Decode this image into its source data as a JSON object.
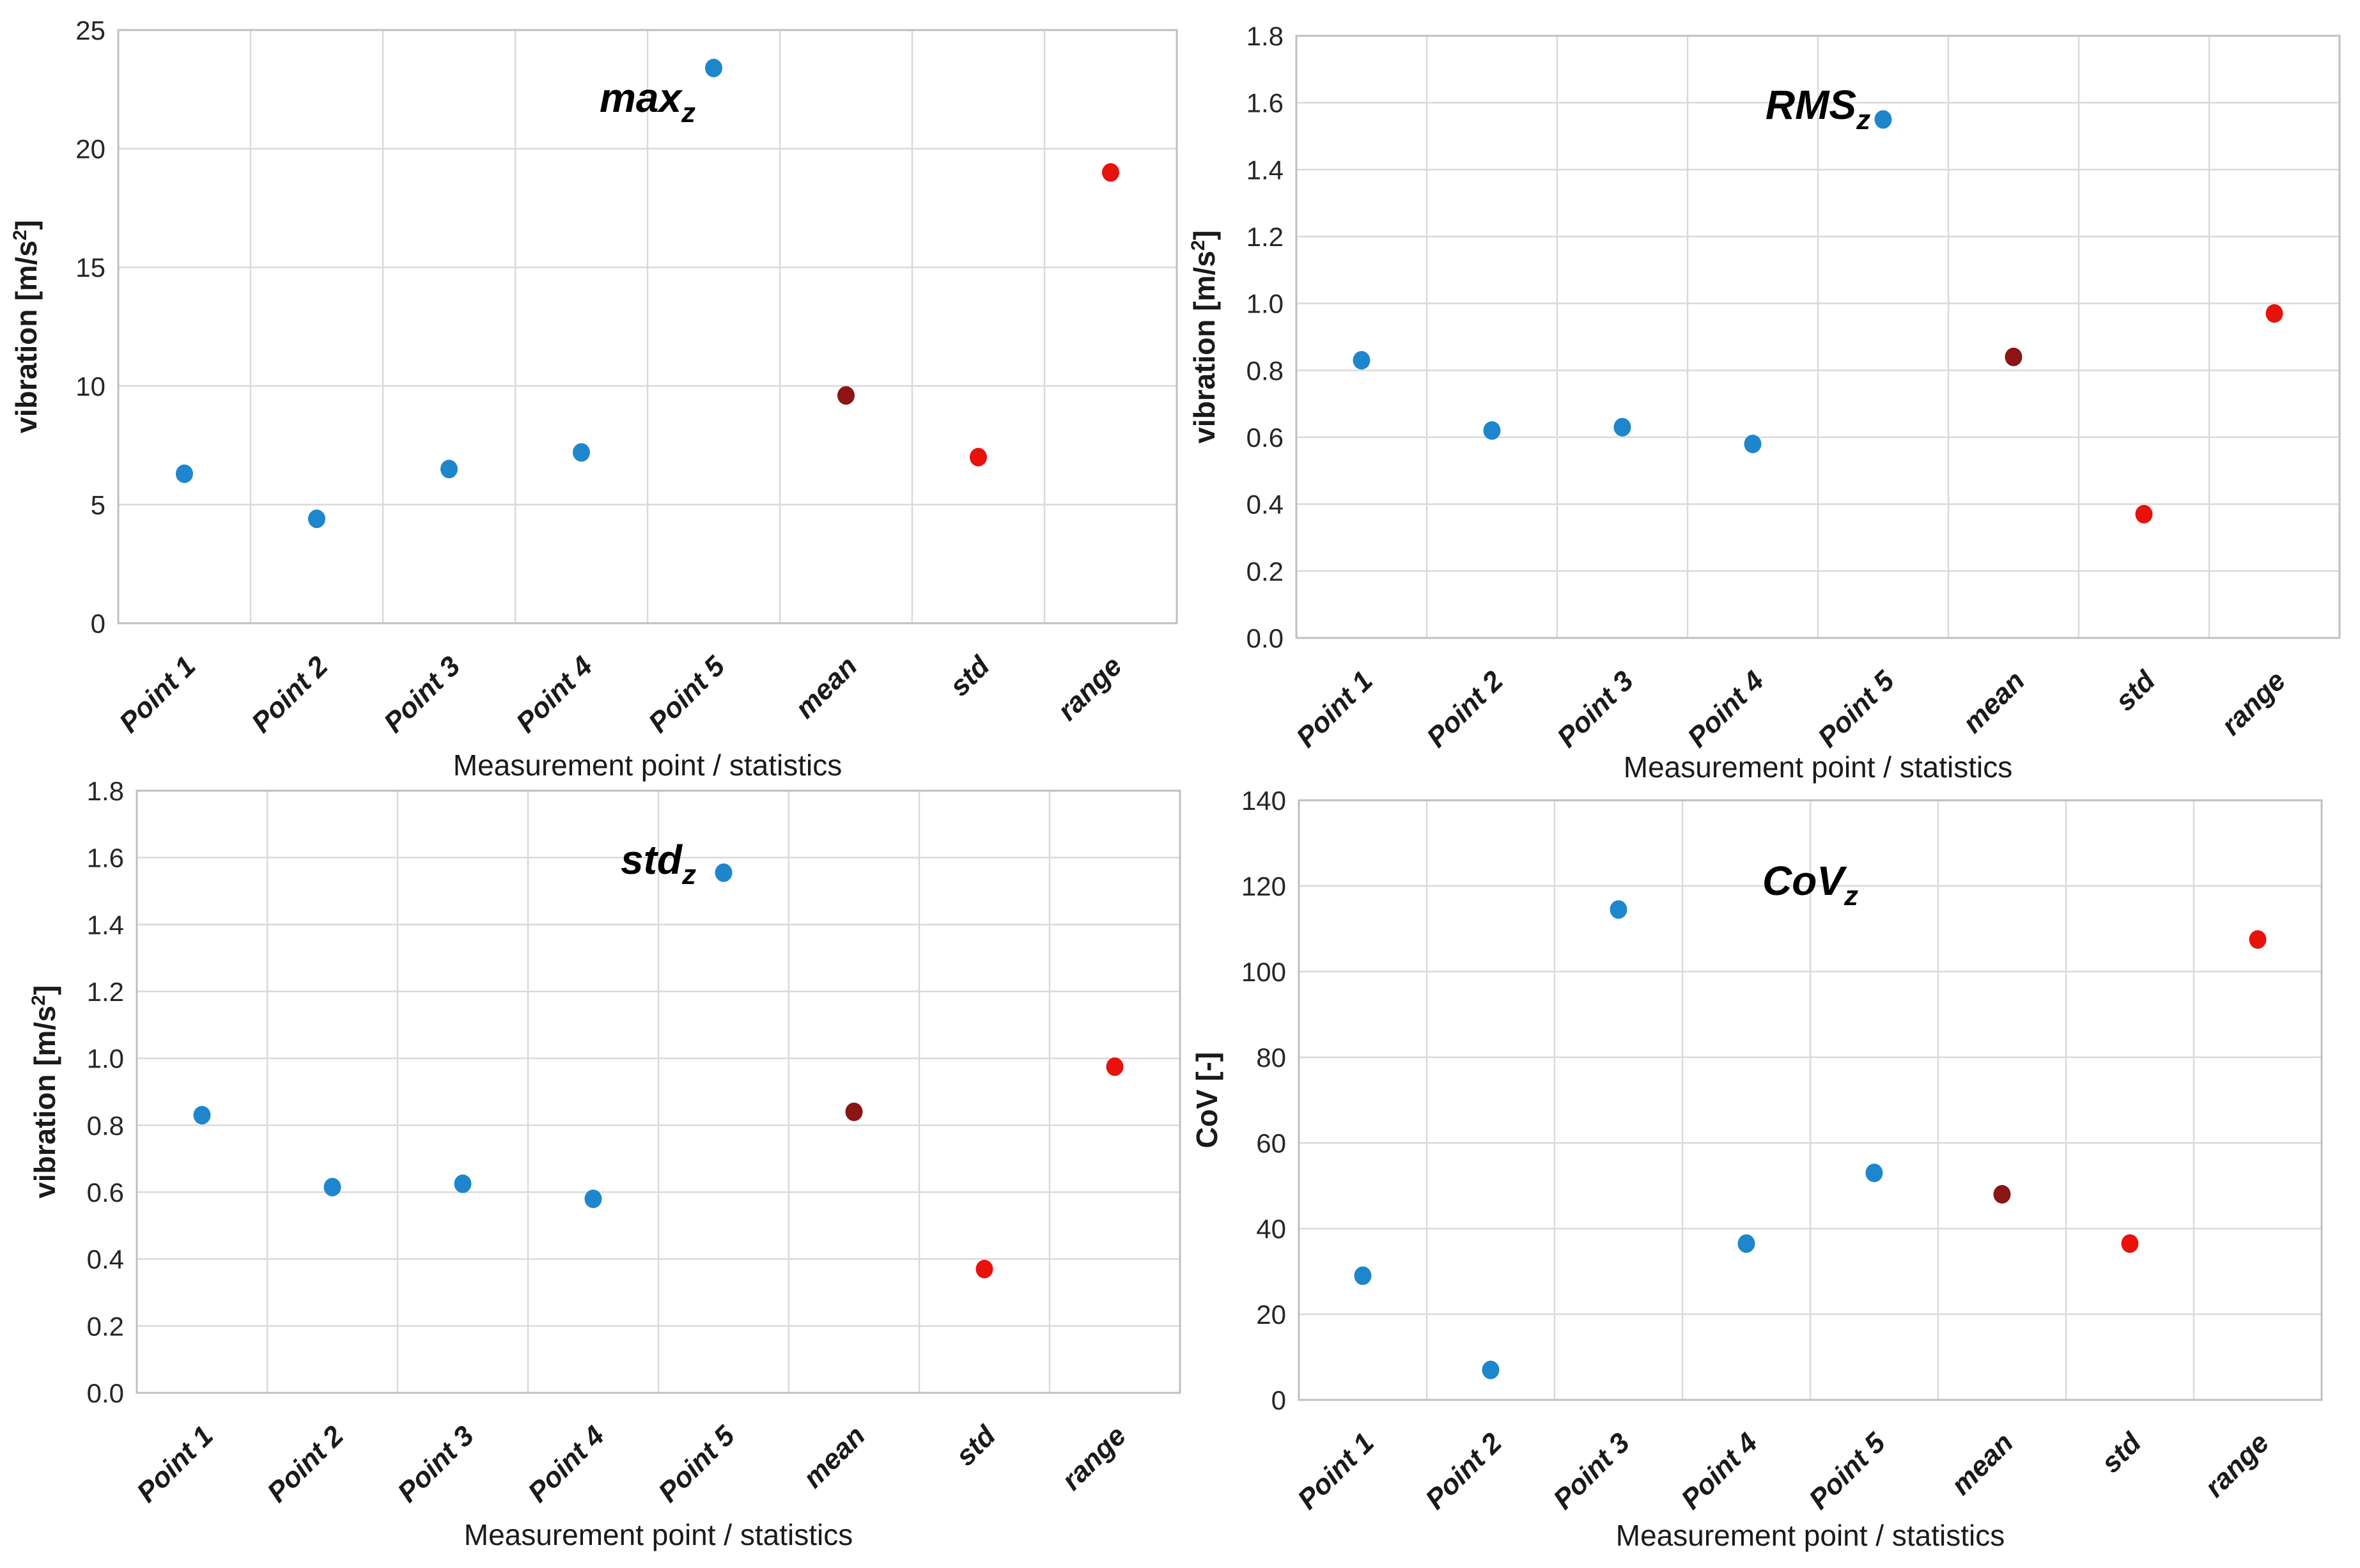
{
  "page": {
    "background": "#ffffff"
  },
  "colors": {
    "point_blue": "#1e86cd",
    "stat_mean_dark_red": "#8b1414",
    "stat_red": "#e8110c",
    "gridline": "#d9d9d9",
    "plot_border": "#bfbfbf",
    "text": "#1a1a1a"
  },
  "chart_data": [
    {
      "id": "max-z",
      "type": "scatter",
      "title_main": "max",
      "title_sub": "z",
      "categories": [
        "Point 1",
        "Point 2",
        "Point 3",
        "Point 4",
        "Point 5",
        "mean",
        "std",
        "range"
      ],
      "values": [
        6.3,
        4.4,
        6.5,
        7.2,
        23.4,
        9.6,
        7.0,
        19.0
      ],
      "point_roles": [
        "measurement",
        "measurement",
        "measurement",
        "measurement",
        "measurement",
        "mean",
        "std",
        "range"
      ],
      "xlabel": "Measurement point / statistics",
      "ylabel_prefix": "vibration [m/s",
      "ylabel_sup": "2",
      "ylabel_suffix": "]",
      "ylim": [
        0,
        25
      ],
      "ystep": 5,
      "y_decimals": 0,
      "yticks": [
        "0",
        "5",
        "10",
        "15",
        "20",
        "25"
      ],
      "grid": true,
      "legend": "none"
    },
    {
      "id": "rms-z",
      "type": "scatter",
      "title_main": "RMS",
      "title_sub": "z",
      "categories": [
        "Point 1",
        "Point 2",
        "Point 3",
        "Point 4",
        "Point 5",
        "mean",
        "std",
        "range"
      ],
      "values": [
        0.83,
        0.62,
        0.63,
        0.58,
        1.55,
        0.84,
        0.37,
        0.97
      ],
      "point_roles": [
        "measurement",
        "measurement",
        "measurement",
        "measurement",
        "measurement",
        "mean",
        "std",
        "range"
      ],
      "xlabel": "Measurement point / statistics",
      "ylabel_prefix": "vibration [m/s",
      "ylabel_sup": "2",
      "ylabel_suffix": "]",
      "ylim": [
        0,
        1.8
      ],
      "ystep": 0.2,
      "y_decimals": 1,
      "yticks": [
        "0.0",
        "0.2",
        "0.4",
        "0.6",
        "0.8",
        "1.0",
        "1.2",
        "1.4",
        "1.6",
        "1.8"
      ],
      "grid": true,
      "legend": "none"
    },
    {
      "id": "std-z",
      "type": "scatter",
      "title_main": "std",
      "title_sub": "z",
      "categories": [
        "Point 1",
        "Point 2",
        "Point 3",
        "Point 4",
        "Point 5",
        "mean",
        "std",
        "range"
      ],
      "values": [
        0.83,
        0.615,
        0.625,
        0.58,
        1.555,
        0.84,
        0.37,
        0.975
      ],
      "point_roles": [
        "measurement",
        "measurement",
        "measurement",
        "measurement",
        "measurement",
        "mean",
        "std",
        "range"
      ],
      "xlabel": "Measurement point / statistics",
      "ylabel_prefix": "vibration [m/s",
      "ylabel_sup": "2",
      "ylabel_suffix": "]",
      "ylim": [
        0,
        1.8
      ],
      "ystep": 0.2,
      "y_decimals": 1,
      "yticks": [
        "0.0",
        "0.2",
        "0.4",
        "0.6",
        "0.8",
        "1.0",
        "1.2",
        "1.4",
        "1.6",
        "1.8"
      ],
      "grid": true,
      "legend": "none"
    },
    {
      "id": "cov-z",
      "type": "scatter",
      "title_main": "CoV",
      "title_sub": "z",
      "categories": [
        "Point 1",
        "Point 2",
        "Point 3",
        "Point 4",
        "Point 5",
        "mean",
        "std",
        "range"
      ],
      "values": [
        29,
        7,
        114.5,
        36.5,
        53,
        48,
        36.5,
        107.5
      ],
      "point_roles": [
        "measurement",
        "measurement",
        "measurement",
        "measurement",
        "measurement",
        "mean",
        "std",
        "range"
      ],
      "xlabel": "Measurement point / statistics",
      "ylabel_prefix": "CoV [-]",
      "ylabel_sup": "",
      "ylabel_suffix": "",
      "ylim": [
        0,
        140
      ],
      "ystep": 20,
      "y_decimals": 0,
      "yticks": [
        "0",
        "20",
        "40",
        "60",
        "80",
        "100",
        "120",
        "140"
      ],
      "grid": true,
      "legend": "none"
    }
  ]
}
